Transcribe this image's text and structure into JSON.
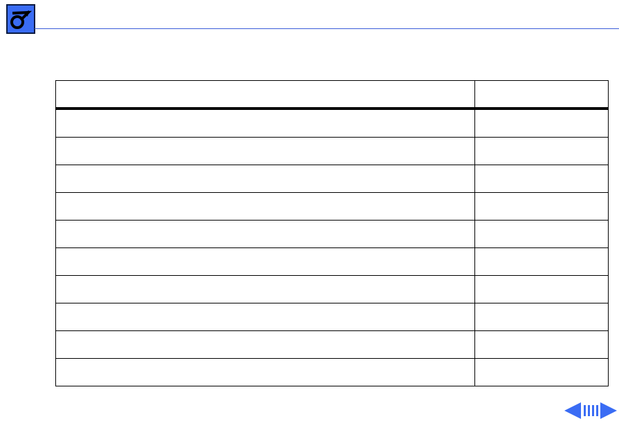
{
  "header": {
    "logo_icon": "apple-service-wrench-icon",
    "accent_color": "#3a6cf4",
    "rule_color": "#3a5bd9"
  },
  "table": {
    "columns": [
      "",
      ""
    ],
    "rows": [
      [
        "",
        ""
      ],
      [
        "",
        ""
      ],
      [
        "",
        ""
      ],
      [
        "",
        ""
      ],
      [
        "",
        ""
      ],
      [
        "",
        ""
      ],
      [
        "",
        ""
      ],
      [
        "",
        ""
      ],
      [
        "",
        ""
      ],
      [
        "",
        ""
      ]
    ]
  },
  "nav": {
    "prev_icon": "arrow-left-icon",
    "index_icon": "page-index-icon",
    "next_icon": "arrow-right-icon"
  }
}
